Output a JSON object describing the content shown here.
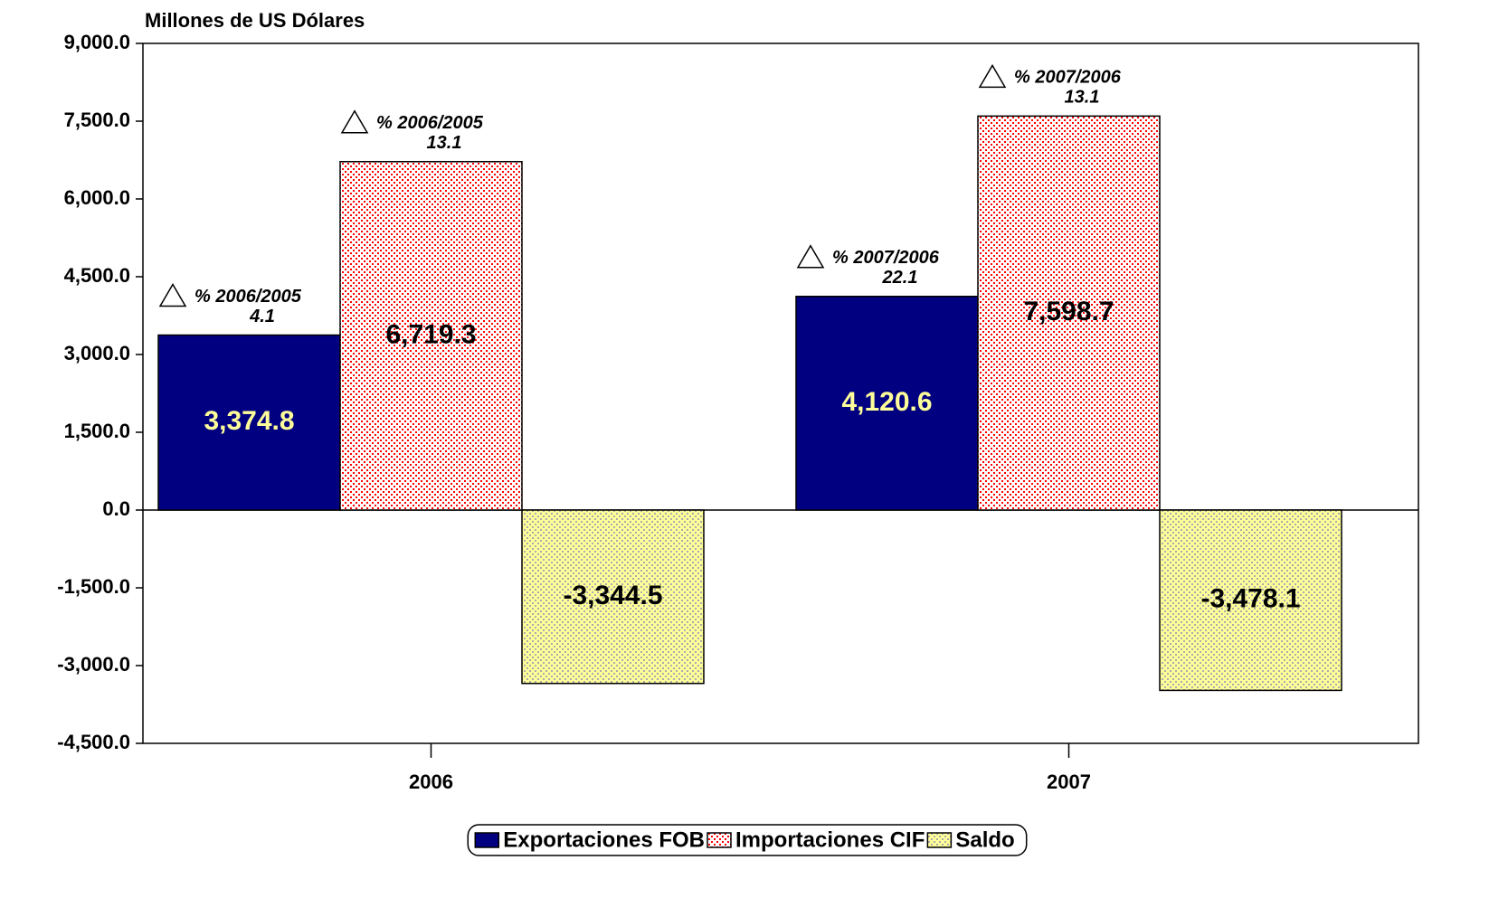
{
  "chart_data": {
    "type": "bar",
    "title": "Millones de US Dólares",
    "categories": [
      "2006",
      "2007"
    ],
    "ylim": [
      -4500,
      9000
    ],
    "yticks": [
      {
        "value": -4500,
        "label": "-4,500.0"
      },
      {
        "value": -3000,
        "label": "-3,000.0"
      },
      {
        "value": -1500,
        "label": "-1,500.0"
      },
      {
        "value": 0,
        "label": "0.0"
      },
      {
        "value": 1500,
        "label": "1,500.0"
      },
      {
        "value": 3000,
        "label": "3,000.0"
      },
      {
        "value": 4500,
        "label": "4,500.0"
      },
      {
        "value": 6000,
        "label": "6,000.0"
      },
      {
        "value": 7500,
        "label": "7,500.0"
      },
      {
        "value": 9000,
        "label": "9,000.0"
      }
    ],
    "series": [
      {
        "name": "Exportaciones FOB",
        "color": "#000080",
        "pattern": "solid",
        "label_color": "#ffff99",
        "values": [
          3374.8,
          4120.6
        ],
        "value_labels": [
          "3,374.8",
          "4,120.6"
        ],
        "changes": [
          {
            "label": "% 2006/2005",
            "value": 4.1
          },
          {
            "label": "% 2007/2006",
            "value": 22.1
          }
        ]
      },
      {
        "name": "Importaciones CIF",
        "color": "#ff0000",
        "pattern": "dots",
        "label_color": "#000000",
        "values": [
          6719.3,
          7598.7
        ],
        "value_labels": [
          "6,719.3",
          "7,598.7"
        ],
        "changes": [
          {
            "label": "% 2006/2005",
            "value": 13.1
          },
          {
            "label": "% 2007/2006",
            "value": 13.1
          }
        ]
      },
      {
        "name": "Saldo",
        "color": "#ffff99",
        "pattern": "dots-bg",
        "label_color": "#000000",
        "values": [
          -3344.5,
          -3478.1
        ],
        "value_labels": [
          "-3,344.5",
          "-3,478.1"
        ]
      }
    ],
    "legend": "bottom"
  }
}
